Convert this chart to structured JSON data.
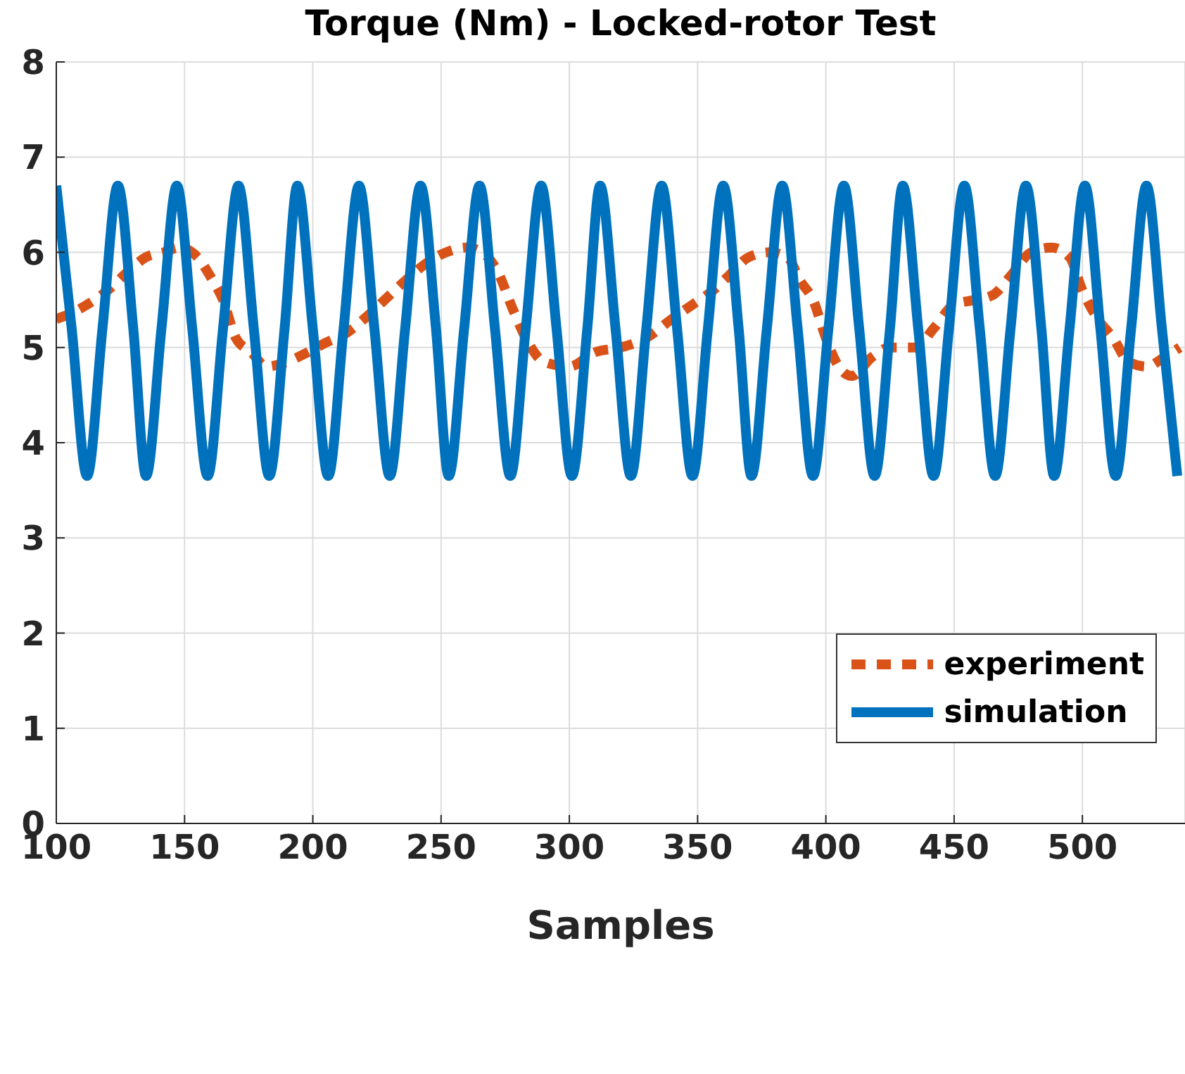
{
  "chart_data": {
    "type": "line",
    "title": "Torque (Nm) - Locked-rotor Test",
    "xlabel": "Samples",
    "xlim": [
      100,
      540
    ],
    "xticks": [
      100,
      150,
      200,
      250,
      300,
      350,
      400,
      450,
      500
    ],
    "ylim": [
      0,
      8
    ],
    "yticks": [
      0,
      1,
      2,
      3,
      4,
      5,
      6,
      7,
      8
    ],
    "grid": true,
    "legend": "bottom right",
    "series": [
      {
        "name": "experiment",
        "color": "#d95319",
        "line_style": "dashed",
        "x": [
          100,
          105,
          112,
          120,
          128,
          135,
          142,
          148,
          155,
          160,
          165,
          170,
          176,
          182,
          190,
          198,
          205,
          213,
          220,
          228,
          236,
          245,
          252,
          260,
          266,
          272,
          278,
          284,
          290,
          300,
          310,
          320,
          330,
          340,
          348,
          356,
          362,
          370,
          378,
          385,
          390,
          395,
          400,
          405,
          410,
          418,
          425,
          435,
          442,
          450,
          458,
          465,
          472,
          480,
          488,
          495,
          500,
          506,
          512,
          518,
          525,
          532,
          538
        ],
        "values": [
          5.3,
          5.35,
          5.45,
          5.6,
          5.8,
          5.95,
          6.0,
          6.05,
          5.95,
          5.75,
          5.5,
          5.1,
          4.95,
          4.8,
          4.85,
          4.95,
          5.05,
          5.15,
          5.3,
          5.5,
          5.7,
          5.9,
          6.0,
          6.05,
          6.0,
          5.8,
          5.4,
          5.05,
          4.85,
          4.8,
          4.95,
          5.0,
          5.1,
          5.3,
          5.45,
          5.6,
          5.75,
          5.95,
          6.0,
          5.95,
          5.7,
          5.5,
          5.1,
          4.8,
          4.7,
          4.9,
          5.0,
          5.0,
          5.2,
          5.45,
          5.5,
          5.55,
          5.75,
          6.0,
          6.05,
          5.95,
          5.6,
          5.3,
          5.1,
          4.85,
          4.8,
          4.9,
          5.0
        ]
      },
      {
        "name": "simulation",
        "color": "#0072bd",
        "line_style": "solid",
        "x": [
          100,
          106,
          112,
          118,
          124,
          130,
          135,
          141,
          147,
          153,
          159,
          165,
          171,
          177,
          183,
          189,
          194,
          200,
          206,
          212,
          218,
          224,
          230,
          236,
          242,
          248,
          253,
          259,
          265,
          271,
          277,
          283,
          289,
          295,
          301,
          307,
          312,
          318,
          324,
          330,
          336,
          342,
          348,
          354,
          360,
          366,
          371,
          377,
          383,
          389,
          395,
          401,
          407,
          413,
          419,
          425,
          430,
          436,
          442,
          448,
          454,
          460,
          466,
          472,
          478,
          484,
          489,
          495,
          501,
          507,
          513,
          519,
          525,
          531,
          537
        ],
        "values": [
          6.7,
          5.2,
          3.65,
          5.2,
          6.7,
          5.2,
          3.65,
          5.2,
          6.7,
          5.2,
          3.65,
          5.2,
          6.7,
          5.2,
          3.65,
          5.2,
          6.7,
          5.2,
          3.65,
          5.2,
          6.7,
          5.2,
          3.65,
          5.2,
          6.7,
          5.2,
          3.65,
          5.2,
          6.7,
          5.2,
          3.65,
          5.2,
          6.7,
          5.2,
          3.65,
          5.2,
          6.7,
          5.2,
          3.65,
          5.2,
          6.7,
          5.2,
          3.65,
          5.2,
          6.7,
          5.2,
          3.65,
          5.2,
          6.7,
          5.2,
          3.65,
          5.2,
          6.7,
          5.2,
          3.65,
          5.2,
          6.7,
          5.2,
          3.65,
          5.2,
          6.7,
          5.2,
          3.65,
          5.2,
          6.7,
          5.2,
          3.65,
          5.2,
          6.7,
          5.2,
          3.65,
          5.2,
          6.7,
          5.2,
          3.65
        ]
      }
    ]
  }
}
